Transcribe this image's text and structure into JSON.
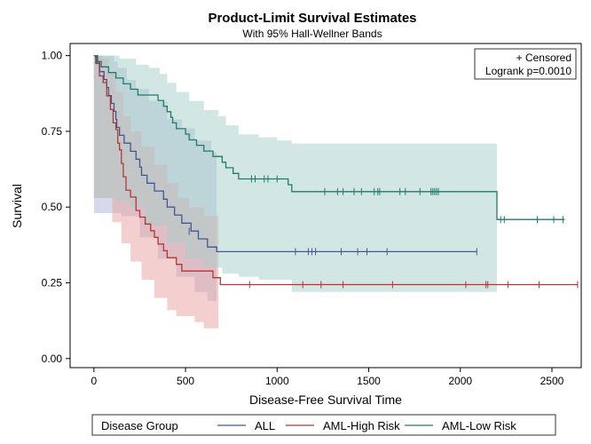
{
  "chart_data": {
    "type": "line",
    "title": "Product-Limit Survival Estimates",
    "subtitle": "With 95% Hall-Wellner Bands",
    "xlabel": "Disease-Free Survival Time",
    "ylabel": "Survival",
    "xlim": [
      -130,
      2660
    ],
    "ylim": [
      -0.03,
      1.04
    ],
    "xticks": [
      "0",
      "500",
      "1000",
      "1500",
      "2000",
      "2500"
    ],
    "xtick_values": [
      0,
      500,
      1000,
      1500,
      2000,
      2500
    ],
    "yticks": [
      "0.00",
      "0.25",
      "0.50",
      "0.75",
      "1.00"
    ],
    "ytick_values": [
      0,
      0.25,
      0.5,
      0.75,
      1.0
    ],
    "grid": false,
    "inset": {
      "line1": "+ Censored",
      "line2": "Logrank p=0.0010"
    },
    "legend": {
      "title": "Disease Group",
      "position": "bottom"
    },
    "series": [
      {
        "name": "ALL",
        "color": "#445694",
        "band_color": "#a9b6d8",
        "steps": [
          [
            0,
            1.0
          ],
          [
            10,
            0.974
          ],
          [
            32,
            0.947
          ],
          [
            55,
            0.921
          ],
          [
            70,
            0.895
          ],
          [
            80,
            0.868
          ],
          [
            95,
            0.842
          ],
          [
            110,
            0.816
          ],
          [
            120,
            0.789
          ],
          [
            125,
            0.763
          ],
          [
            140,
            0.737
          ],
          [
            165,
            0.711
          ],
          [
            200,
            0.684
          ],
          [
            230,
            0.658
          ],
          [
            250,
            0.632
          ],
          [
            260,
            0.605
          ],
          [
            290,
            0.579
          ],
          [
            330,
            0.553
          ],
          [
            380,
            0.526
          ],
          [
            400,
            0.5
          ],
          [
            440,
            0.474
          ],
          [
            480,
            0.447
          ],
          [
            530,
            0.421
          ],
          [
            570,
            0.395
          ],
          [
            620,
            0.368
          ],
          [
            670,
            0.353
          ],
          [
            2090,
            0.353
          ]
        ],
        "band_upper": [
          [
            0,
            1.0
          ],
          [
            60,
            1.0
          ],
          [
            110,
            0.98
          ],
          [
            130,
            0.96
          ],
          [
            180,
            0.92
          ],
          [
            230,
            0.89
          ],
          [
            300,
            0.85
          ],
          [
            400,
            0.79
          ],
          [
            480,
            0.76
          ],
          [
            550,
            0.72
          ],
          [
            640,
            0.68
          ],
          [
            670,
            0.36
          ]
        ],
        "band_lower": [
          [
            0,
            0.48
          ],
          [
            120,
            0.48
          ],
          [
            150,
            0.47
          ],
          [
            250,
            0.4
          ],
          [
            350,
            0.33
          ],
          [
            450,
            0.27
          ],
          [
            550,
            0.22
          ],
          [
            620,
            0.19
          ],
          [
            670,
            0.18
          ]
        ],
        "censored": [
          [
            520,
            0.421
          ],
          [
            1100,
            0.353
          ],
          [
            1170,
            0.353
          ],
          [
            1190,
            0.353
          ],
          [
            1210,
            0.353
          ],
          [
            1350,
            0.353
          ],
          [
            1440,
            0.353
          ],
          [
            1490,
            0.353
          ],
          [
            1600,
            0.353
          ],
          [
            2090,
            0.353
          ]
        ]
      },
      {
        "name": "AML-High Risk",
        "color": "#b23737",
        "band_color": "#e8a0a0",
        "steps": [
          [
            0,
            1.0
          ],
          [
            15,
            0.978
          ],
          [
            30,
            0.933
          ],
          [
            50,
            0.911
          ],
          [
            70,
            0.867
          ],
          [
            90,
            0.822
          ],
          [
            105,
            0.778
          ],
          [
            120,
            0.756
          ],
          [
            130,
            0.711
          ],
          [
            140,
            0.689
          ],
          [
            150,
            0.644
          ],
          [
            160,
            0.6
          ],
          [
            175,
            0.556
          ],
          [
            200,
            0.533
          ],
          [
            230,
            0.489
          ],
          [
            250,
            0.467
          ],
          [
            280,
            0.444
          ],
          [
            310,
            0.422
          ],
          [
            330,
            0.4
          ],
          [
            350,
            0.378
          ],
          [
            380,
            0.356
          ],
          [
            400,
            0.333
          ],
          [
            450,
            0.311
          ],
          [
            480,
            0.289
          ],
          [
            650,
            0.267
          ],
          [
            690,
            0.244
          ],
          [
            2640,
            0.244
          ]
        ],
        "band_upper": [
          [
            0,
            1.0
          ],
          [
            20,
            1.0
          ],
          [
            50,
            0.99
          ],
          [
            80,
            0.94
          ],
          [
            120,
            0.88
          ],
          [
            160,
            0.8
          ],
          [
            200,
            0.75
          ],
          [
            260,
            0.7
          ],
          [
            330,
            0.64
          ],
          [
            400,
            0.58
          ],
          [
            460,
            0.53
          ],
          [
            520,
            0.5
          ],
          [
            600,
            0.47
          ],
          [
            680,
            0.46
          ]
        ],
        "band_lower": [
          [
            0,
            0.53
          ],
          [
            50,
            0.53
          ],
          [
            100,
            0.45
          ],
          [
            150,
            0.38
          ],
          [
            200,
            0.32
          ],
          [
            260,
            0.26
          ],
          [
            330,
            0.2
          ],
          [
            400,
            0.16
          ],
          [
            450,
            0.14
          ],
          [
            550,
            0.12
          ],
          [
            600,
            0.1
          ],
          [
            680,
            0.1
          ]
        ],
        "censored": [
          [
            850,
            0.244
          ],
          [
            1140,
            0.244
          ],
          [
            1240,
            0.244
          ],
          [
            1360,
            0.244
          ],
          [
            1630,
            0.244
          ],
          [
            2030,
            0.244
          ],
          [
            2140,
            0.244
          ],
          [
            2150,
            0.244
          ],
          [
            2260,
            0.244
          ],
          [
            2430,
            0.244
          ],
          [
            2640,
            0.244
          ]
        ]
      },
      {
        "name": "AML-Low Risk",
        "color": "#207a6c",
        "band_color": "#a6cfc8",
        "steps": [
          [
            0,
            1.0
          ],
          [
            20,
            0.981
          ],
          [
            40,
            0.963
          ],
          [
            80,
            0.944
          ],
          [
            120,
            0.926
          ],
          [
            160,
            0.907
          ],
          [
            200,
            0.889
          ],
          [
            240,
            0.87
          ],
          [
            350,
            0.852
          ],
          [
            380,
            0.833
          ],
          [
            400,
            0.815
          ],
          [
            420,
            0.796
          ],
          [
            430,
            0.778
          ],
          [
            450,
            0.759
          ],
          [
            500,
            0.741
          ],
          [
            520,
            0.722
          ],
          [
            560,
            0.704
          ],
          [
            600,
            0.685
          ],
          [
            650,
            0.667
          ],
          [
            700,
            0.648
          ],
          [
            720,
            0.63
          ],
          [
            760,
            0.611
          ],
          [
            790,
            0.593
          ],
          [
            1060,
            0.574
          ],
          [
            1080,
            0.551
          ],
          [
            2200,
            0.459
          ],
          [
            2570,
            0.459
          ]
        ],
        "band_upper": [
          [
            0,
            1.0
          ],
          [
            20,
            1.0
          ],
          [
            140,
            0.99
          ],
          [
            230,
            0.97
          ],
          [
            300,
            0.96
          ],
          [
            360,
            0.94
          ],
          [
            400,
            0.91
          ],
          [
            450,
            0.88
          ],
          [
            520,
            0.85
          ],
          [
            600,
            0.82
          ],
          [
            680,
            0.8
          ],
          [
            720,
            0.77
          ],
          [
            790,
            0.74
          ],
          [
            900,
            0.73
          ],
          [
            1000,
            0.72
          ],
          [
            1080,
            0.71
          ],
          [
            2200,
            0.71
          ]
        ],
        "band_lower": [
          [
            0,
            0.53
          ],
          [
            60,
            0.53
          ],
          [
            120,
            0.52
          ],
          [
            200,
            0.5
          ],
          [
            280,
            0.44
          ],
          [
            400,
            0.38
          ],
          [
            500,
            0.33
          ],
          [
            600,
            0.3
          ],
          [
            700,
            0.28
          ],
          [
            790,
            0.27
          ],
          [
            900,
            0.26
          ],
          [
            1080,
            0.22
          ],
          [
            2200,
            0.22
          ]
        ],
        "censored": [
          [
            860,
            0.593
          ],
          [
            880,
            0.593
          ],
          [
            930,
            0.593
          ],
          [
            950,
            0.593
          ],
          [
            1000,
            0.593
          ],
          [
            1260,
            0.551
          ],
          [
            1330,
            0.551
          ],
          [
            1360,
            0.551
          ],
          [
            1420,
            0.551
          ],
          [
            1460,
            0.551
          ],
          [
            1530,
            0.551
          ],
          [
            1550,
            0.551
          ],
          [
            1560,
            0.551
          ],
          [
            1670,
            0.551
          ],
          [
            1700,
            0.551
          ],
          [
            1780,
            0.551
          ],
          [
            1840,
            0.551
          ],
          [
            1850,
            0.551
          ],
          [
            1860,
            0.551
          ],
          [
            1870,
            0.551
          ],
          [
            1880,
            0.551
          ],
          [
            2220,
            0.459
          ],
          [
            2240,
            0.459
          ],
          [
            2420,
            0.459
          ],
          [
            2510,
            0.459
          ],
          [
            2560,
            0.459
          ]
        ]
      }
    ]
  }
}
